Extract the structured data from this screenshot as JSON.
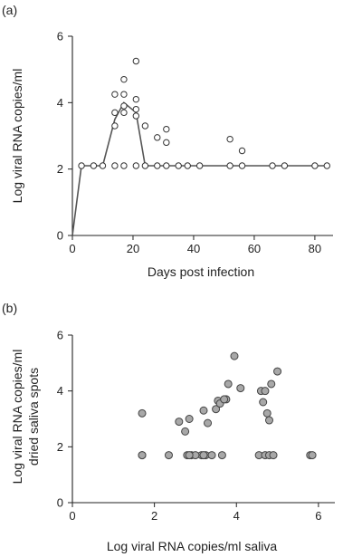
{
  "chart_data": [
    {
      "panel_label": "(a)",
      "type": "line",
      "xlabel": "Days post infection",
      "ylabel": "Log viral RNA copies/ml",
      "xlim": [
        0,
        86
      ],
      "ylim": [
        0,
        6
      ],
      "xticks": [
        "0",
        "20",
        "40",
        "60",
        "80"
      ],
      "yticks": [
        "0",
        "2",
        "4",
        "6"
      ],
      "grid": false,
      "colors": {
        "line": "#555555",
        "marker_edge": "#333333",
        "marker_fill": "#ffffff"
      },
      "line": {
        "x": [
          0,
          3,
          7,
          10,
          14,
          17,
          21,
          24,
          28,
          31,
          35,
          38,
          42,
          52,
          56,
          66,
          70,
          80,
          84
        ],
        "y": [
          0,
          2.1,
          2.1,
          2.1,
          3.5,
          4.0,
          3.7,
          2.1,
          2.1,
          2.1,
          2.1,
          2.1,
          2.1,
          2.1,
          2.1,
          2.1,
          2.1,
          2.1,
          2.1
        ]
      },
      "points": {
        "x": [
          3,
          7,
          10,
          14,
          14,
          14,
          14,
          17,
          17,
          17,
          17,
          17,
          21,
          21,
          21,
          21,
          21,
          24,
          24,
          28,
          28,
          31,
          31,
          31,
          35,
          38,
          42,
          52,
          52,
          56,
          56,
          66,
          70,
          80,
          84
        ],
        "y": [
          2.1,
          2.1,
          2.1,
          2.1,
          3.3,
          3.7,
          4.25,
          3.7,
          3.9,
          4.25,
          4.7,
          2.1,
          2.1,
          3.6,
          3.8,
          4.1,
          5.25,
          2.1,
          3.3,
          2.1,
          2.95,
          2.1,
          2.8,
          3.2,
          2.1,
          2.1,
          2.1,
          2.1,
          2.9,
          2.1,
          2.55,
          2.1,
          2.1,
          2.1,
          2.1
        ]
      }
    },
    {
      "panel_label": "(b)",
      "type": "scatter",
      "xlabel": "Log viral RNA copies/ml saliva",
      "ylabel": [
        "Log viral RNA copies/ml",
        "dried saliva spots"
      ],
      "xlim": [
        0,
        6.4
      ],
      "ylim": [
        0,
        6
      ],
      "xticks": [
        "0",
        "2",
        "4",
        "6"
      ],
      "yticks": [
        "0",
        "2",
        "4",
        "6"
      ],
      "grid": false,
      "colors": {
        "marker_fill": "#a8a8a8",
        "marker_edge": "#444444"
      },
      "points": {
        "x": [
          1.7,
          1.7,
          2.35,
          2.6,
          2.75,
          2.85,
          2.9,
          3.15,
          3.2,
          3.25,
          3.5,
          3.55,
          3.6,
          3.65,
          3.75,
          3.8,
          3.95,
          4.1,
          4.6,
          4.65,
          4.7,
          4.75,
          4.8,
          4.85,
          5.0,
          1.7,
          2.8,
          3.0,
          3.3,
          3.4,
          3.7,
          4.55,
          4.7,
          4.8,
          4.9,
          5.8,
          5.85,
          2.85,
          3.2
        ],
        "y": [
          3.2,
          1.7,
          1.7,
          2.9,
          2.55,
          3.0,
          1.7,
          1.7,
          3.3,
          1.7,
          3.35,
          3.65,
          3.55,
          1.7,
          3.7,
          4.25,
          5.25,
          4.1,
          4.0,
          3.6,
          4.0,
          3.2,
          2.95,
          4.25,
          4.7,
          1.7,
          1.7,
          1.7,
          2.85,
          1.7,
          3.7,
          1.7,
          1.7,
          1.7,
          1.7,
          1.7,
          1.7,
          1.7,
          1.7
        ]
      }
    }
  ]
}
